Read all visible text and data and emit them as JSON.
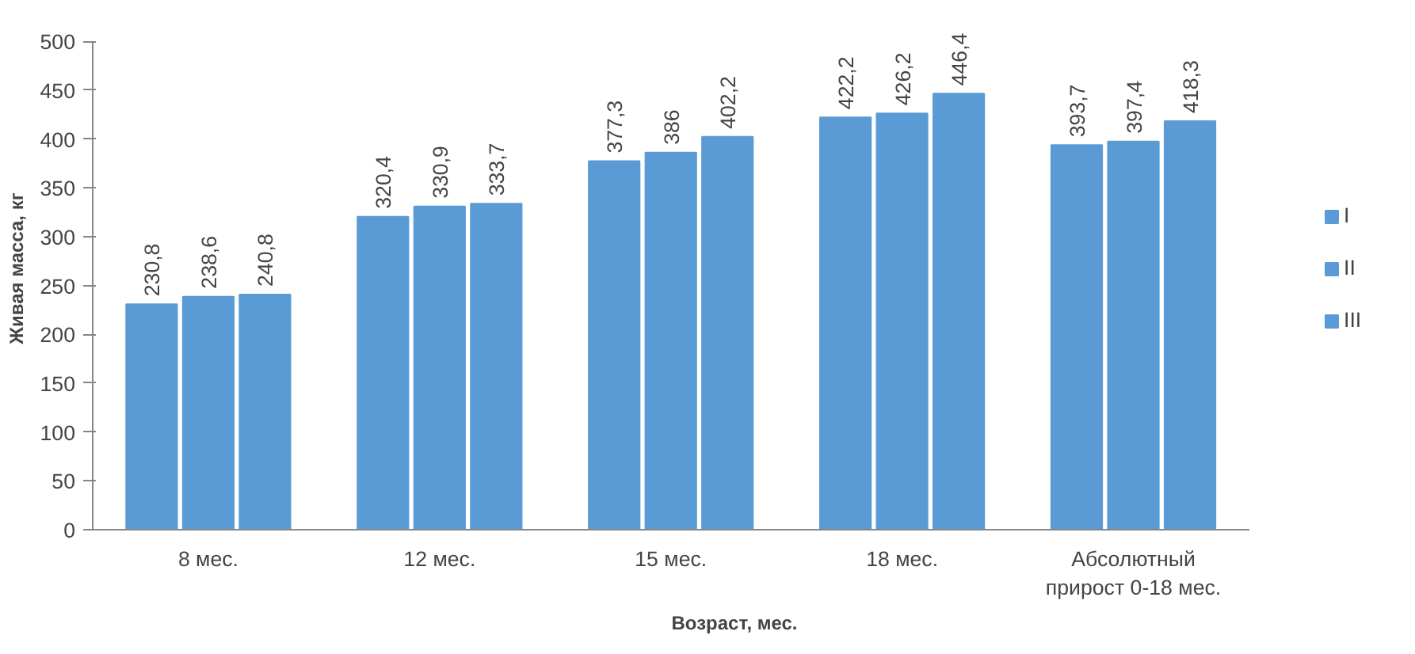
{
  "chart_data": {
    "type": "bar",
    "categories": [
      "8 мес.",
      "12 мес.",
      "15 мес.",
      "18 мес.",
      "Абсолютный\nприрост 0-18 мес."
    ],
    "xlabel": "Возраст, мес.",
    "ylabel": "Живая масса, кг",
    "ylim": [
      0,
      500
    ],
    "yticks": [
      0,
      50,
      100,
      150,
      200,
      250,
      300,
      350,
      400,
      450,
      500
    ],
    "grid": false,
    "legend": "right",
    "series": [
      {
        "name": "I",
        "color": "#5b9bd5",
        "values": [
          230.8,
          320.4,
          377.3,
          422.2,
          393.7
        ],
        "value_labels": [
          "230,8",
          "320,4",
          "377,3",
          "422,2",
          "393,7"
        ]
      },
      {
        "name": "II",
        "color": "#5b9bd5",
        "values": [
          238.6,
          330.9,
          386,
          426.2,
          397.4
        ],
        "value_labels": [
          "238,6",
          "330,9",
          "386",
          "426,2",
          "397,4"
        ]
      },
      {
        "name": "III",
        "color": "#5b9bd5",
        "values": [
          240.8,
          333.7,
          402.2,
          446.4,
          418.3
        ],
        "value_labels": [
          "240,8",
          "333,7",
          "402,2",
          "446,4",
          "418,3"
        ]
      }
    ]
  }
}
